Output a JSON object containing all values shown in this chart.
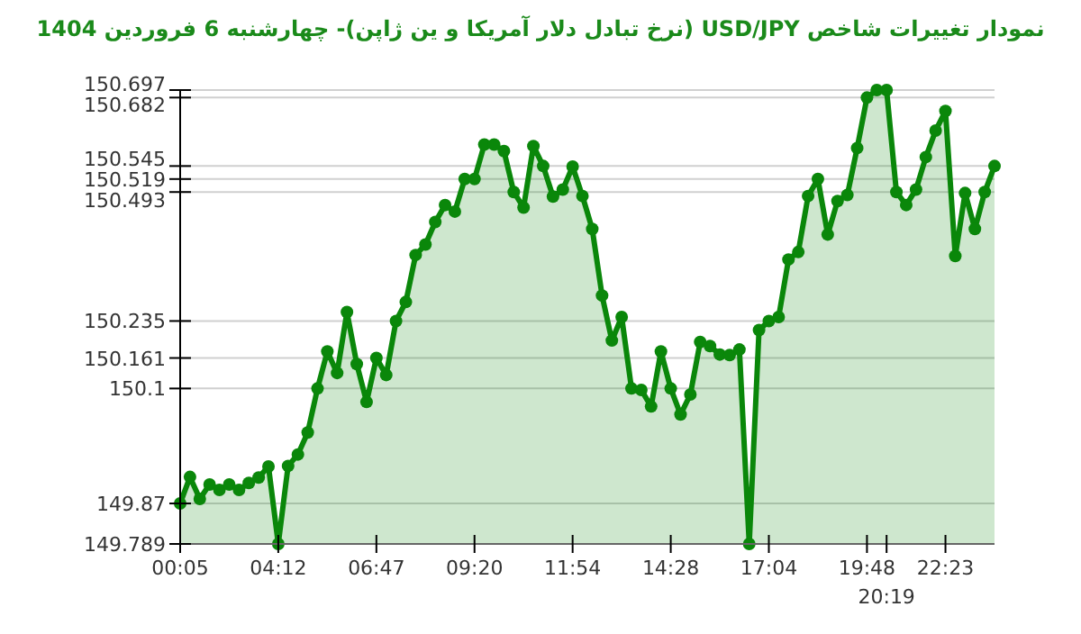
{
  "chart_data": {
    "type": "area",
    "title": "نمودار تغییرات شاخص USD/JPY (نرخ تبادل دلار آمریکا و ین ژاپن)-  چهارشنبه  6 فروردین 1404",
    "categories": [
      "00:05",
      null,
      null,
      null,
      null,
      null,
      null,
      null,
      null,
      null,
      "04:12",
      null,
      null,
      null,
      null,
      null,
      null,
      null,
      null,
      null,
      "06:47",
      null,
      null,
      null,
      null,
      null,
      null,
      null,
      null,
      null,
      "09:20",
      null,
      null,
      null,
      null,
      null,
      null,
      null,
      null,
      null,
      "11:54",
      null,
      null,
      null,
      null,
      null,
      null,
      null,
      null,
      null,
      "14:28",
      null,
      null,
      null,
      null,
      null,
      null,
      null,
      null,
      null,
      "17:04",
      null,
      null,
      null,
      null,
      null,
      null,
      null,
      null,
      null,
      "19:48",
      null,
      "20:19",
      null,
      null,
      null,
      null,
      null,
      "22:23",
      null,
      null,
      null,
      null,
      null
    ],
    "series": [
      {
        "color": "#0a870a",
        "values": [
          149.87,
          149.923,
          149.879,
          149.908,
          149.897,
          149.908,
          149.897,
          149.911,
          149.922,
          149.944,
          149.789,
          149.945,
          149.968,
          150.012,
          150.1,
          150.174,
          150.131,
          150.253,
          150.149,
          150.073,
          150.161,
          150.127,
          150.235,
          150.273,
          150.367,
          150.388,
          150.433,
          150.467,
          150.454,
          150.519,
          150.519,
          150.588,
          150.588,
          150.575,
          150.493,
          150.462,
          150.585,
          150.545,
          150.484,
          150.498,
          150.544,
          150.485,
          150.419,
          150.286,
          150.196,
          150.243,
          150.1,
          150.097,
          150.064,
          150.174,
          150.1,
          150.048,
          150.088,
          150.193,
          150.185,
          150.168,
          150.167,
          150.178,
          149.789,
          150.217,
          150.235,
          150.243,
          150.358,
          150.373,
          150.485,
          150.519,
          150.408,
          150.475,
          150.487,
          150.581,
          150.682,
          150.697,
          150.697,
          150.493,
          150.467,
          150.498,
          150.563,
          150.616,
          150.655,
          150.365,
          150.491,
          150.419,
          150.493,
          150.545
        ]
      }
    ],
    "ylim": [
      149.789,
      150.697
    ],
    "yticks": [
      149.789,
      149.87,
      150.1,
      150.161,
      150.235,
      150.493,
      150.519,
      150.545,
      150.682,
      150.697
    ],
    "grid": "y",
    "marker": "circle",
    "line_style": "solid"
  }
}
